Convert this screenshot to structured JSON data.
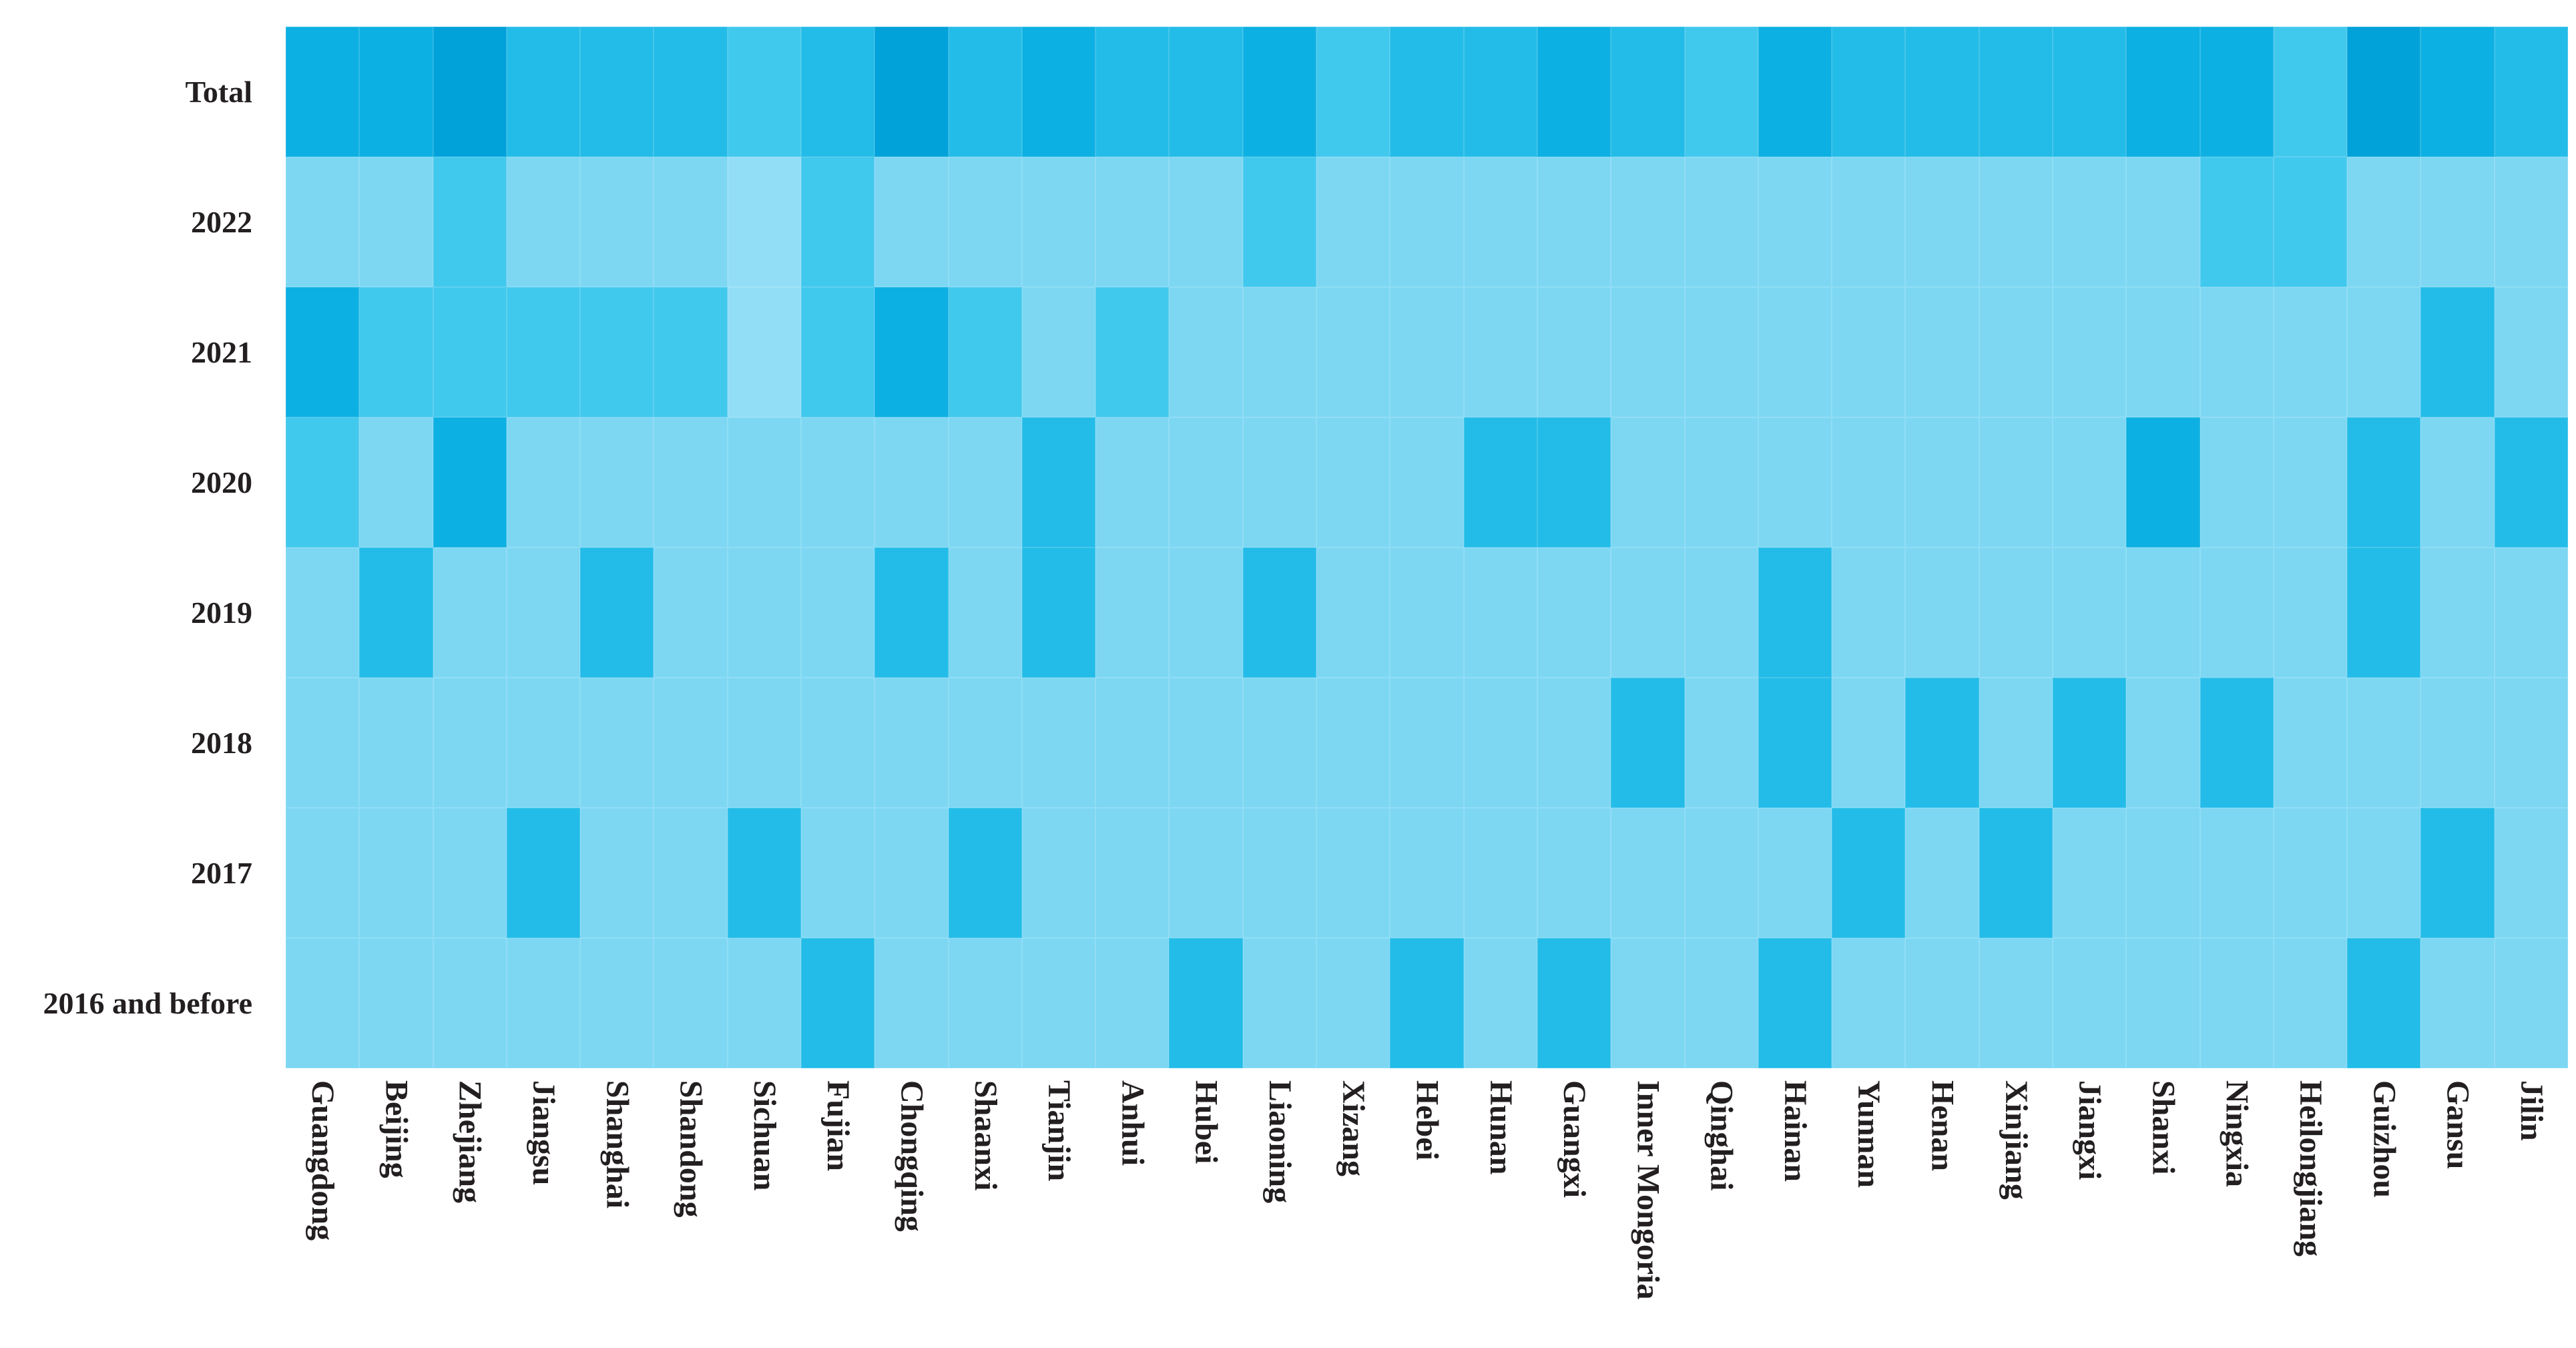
{
  "chart_data": {
    "type": "heatmap",
    "title": "",
    "rows": [
      "Total",
      "2022",
      "2021",
      "2020",
      "2019",
      "2018",
      "2017",
      "2016 and before"
    ],
    "columns": [
      "Guangdong",
      "Beijing",
      "Zhejiang",
      "Jiangsu",
      "Shanghai",
      "Shandong",
      "Sichuan",
      "Fujian",
      "Chongqing",
      "Shaanxi",
      "Tianjin",
      "Anhui",
      "Hubei",
      "Liaoning",
      "Xizang",
      "Hebei",
      "Hunan",
      "Guangxi",
      "Inner Mongoria",
      "Qinghai",
      "Hainan",
      "Yunnan",
      "Henan",
      "Xinjiang",
      "Jiangxi",
      "Shanxi",
      "Ningxia",
      "Heilongjiang",
      "Guizhou",
      "Gansu",
      "Jilin"
    ],
    "legend_position": "none",
    "grid": "faint-white-separators",
    "intensity_scale_note": "levels 0 (lightest) to 5 (darkest), read from cell shading",
    "palette": [
      "#92def6",
      "#7dd7f3",
      "#41c8ed",
      "#23bce8",
      "#0db0e2",
      "#01a2da"
    ],
    "values": [
      [
        4,
        4,
        5,
        3,
        3,
        3,
        2,
        3,
        5,
        3,
        4,
        3,
        3,
        4,
        2,
        3,
        3,
        4,
        3,
        2,
        4,
        3,
        3,
        3,
        3,
        4,
        4,
        2,
        5,
        4,
        3
      ],
      [
        1,
        1,
        2,
        1,
        1,
        1,
        0,
        2,
        1,
        1,
        1,
        1,
        1,
        2,
        1,
        1,
        1,
        1,
        1,
        1,
        1,
        1,
        1,
        1,
        1,
        1,
        2,
        2,
        1,
        1,
        1
      ],
      [
        4,
        2,
        2,
        2,
        2,
        2,
        0,
        2,
        4,
        2,
        1,
        2,
        1,
        1,
        1,
        1,
        1,
        1,
        1,
        1,
        1,
        1,
        1,
        1,
        1,
        1,
        1,
        1,
        1,
        3,
        1
      ],
      [
        2,
        1,
        4,
        1,
        1,
        1,
        1,
        1,
        1,
        1,
        3,
        1,
        1,
        1,
        1,
        1,
        3,
        3,
        1,
        1,
        1,
        1,
        1,
        1,
        1,
        4,
        1,
        1,
        3,
        1,
        3
      ],
      [
        1,
        3,
        1,
        1,
        3,
        1,
        1,
        1,
        3,
        1,
        3,
        1,
        1,
        3,
        1,
        1,
        1,
        1,
        1,
        1,
        3,
        1,
        1,
        1,
        1,
        1,
        1,
        1,
        3,
        1,
        1
      ],
      [
        1,
        1,
        1,
        1,
        1,
        1,
        1,
        1,
        1,
        1,
        1,
        1,
        1,
        1,
        1,
        1,
        1,
        1,
        3,
        1,
        3,
        1,
        3,
        1,
        3,
        1,
        3,
        1,
        1,
        1,
        1
      ],
      [
        1,
        1,
        1,
        3,
        1,
        1,
        3,
        1,
        1,
        3,
        1,
        1,
        1,
        1,
        1,
        1,
        1,
        1,
        1,
        1,
        1,
        3,
        1,
        3,
        1,
        1,
        1,
        1,
        1,
        3,
        1
      ],
      [
        1,
        1,
        1,
        1,
        1,
        1,
        1,
        3,
        1,
        1,
        1,
        1,
        3,
        1,
        1,
        3,
        1,
        3,
        1,
        1,
        3,
        1,
        1,
        1,
        1,
        1,
        1,
        1,
        3,
        1,
        1
      ]
    ]
  }
}
